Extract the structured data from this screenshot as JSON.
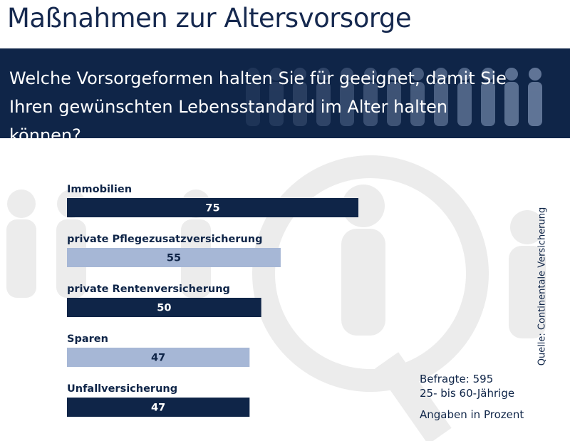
{
  "title": "Maßnahmen zur Altersvorsorge",
  "banner": {
    "question_line1": "Welche Vorsorgeformen halten Sie für geeignet, damit Sie",
    "question_line2": "Ihren gewünschten Lebensstandard im Alter halten können?"
  },
  "colors": {
    "banner_bg": "#0f2548",
    "bar_dark": "#0f2548",
    "bar_light": "#a6b7d6",
    "text_dark": "#0f2548",
    "bg_art": "#ececec"
  },
  "chart_data": {
    "type": "bar",
    "orientation": "horizontal",
    "categories": [
      "Immobilien",
      "private Pflegezusatzversicherung",
      "private Rentenversicherung",
      "Sparen",
      "Unfallversicherung"
    ],
    "values": [
      75,
      55,
      50,
      47,
      47
    ],
    "bar_styles": [
      "dark",
      "light",
      "dark",
      "light",
      "dark"
    ],
    "title": "Maßnahmen zur Altersvorsorge",
    "xlim": [
      0,
      100
    ],
    "grid": false,
    "legend": "none"
  },
  "note": {
    "respondents": "Befragte: 595",
    "age": "25- bis 60-Jährige",
    "unit": "Angaben in Prozent"
  },
  "source": "Quelle: Continentale Versicherung"
}
